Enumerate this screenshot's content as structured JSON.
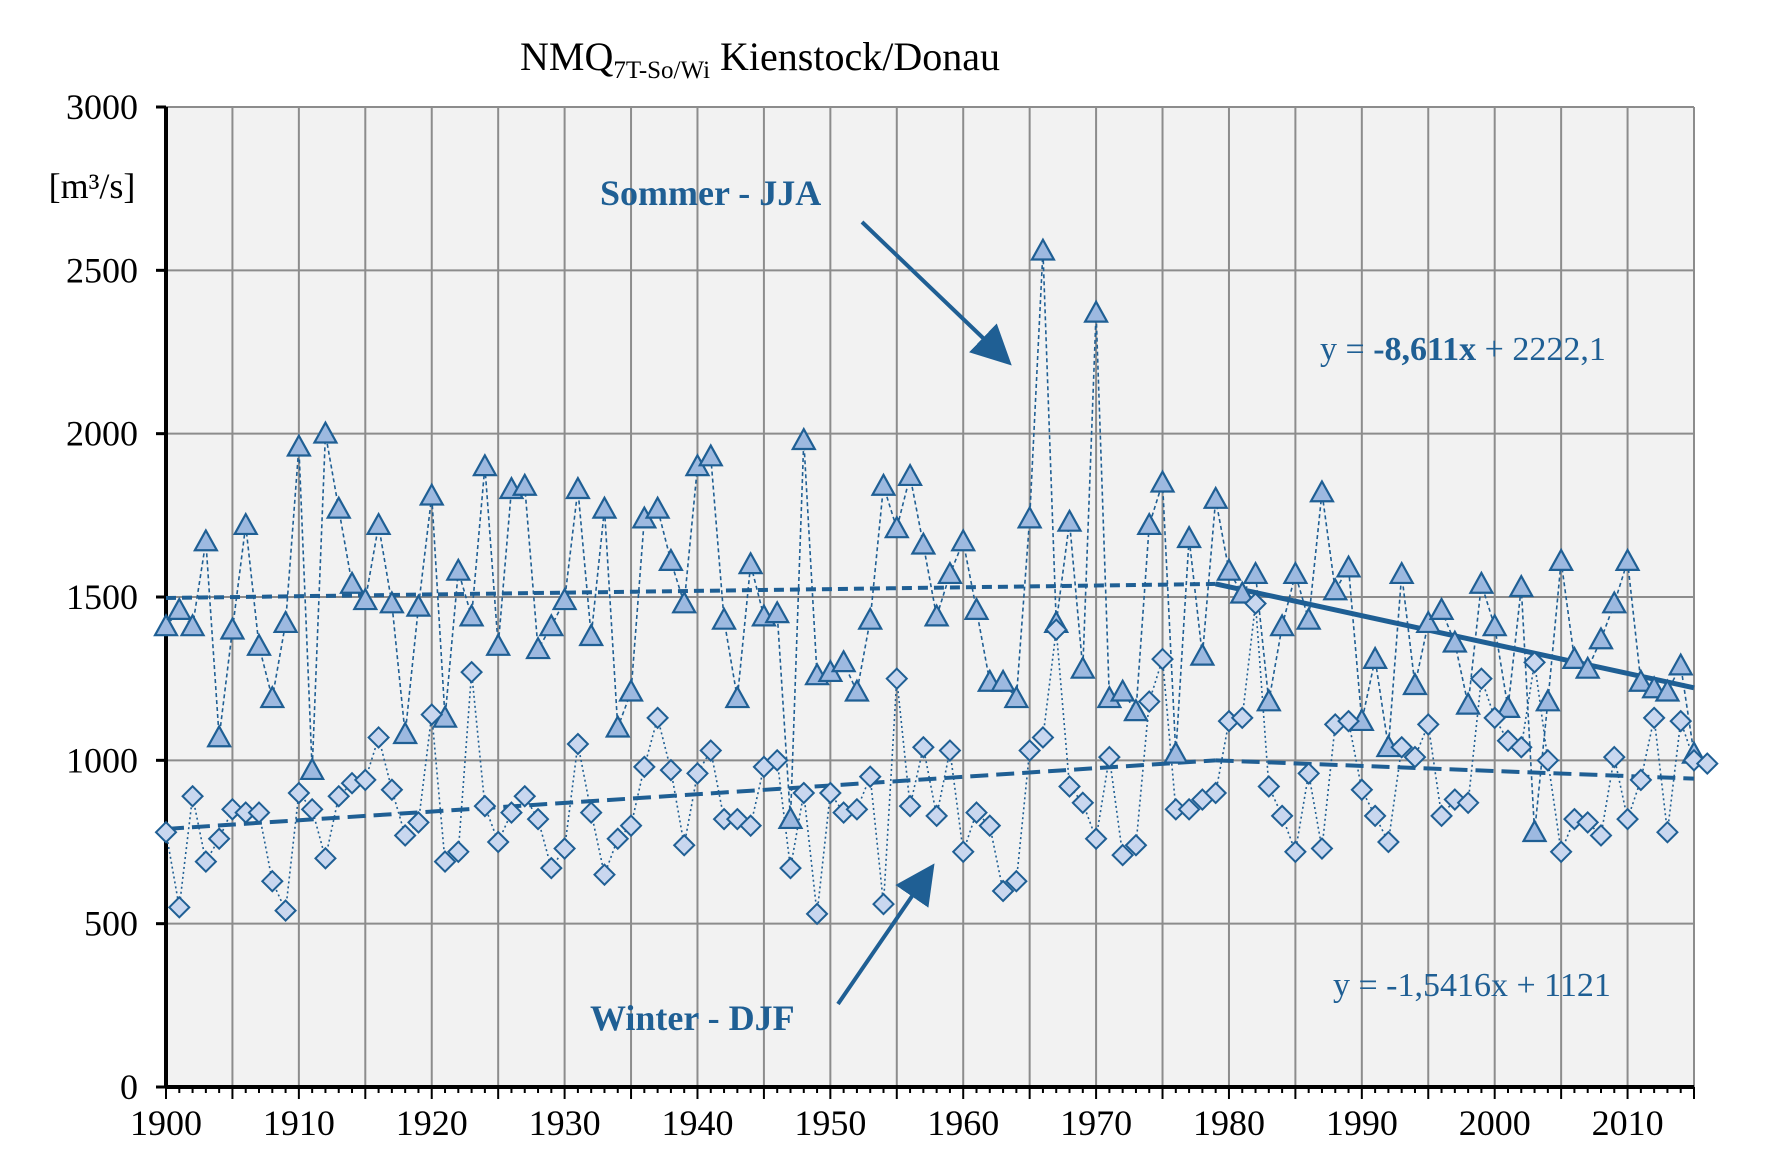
{
  "chart_data": {
    "type": "line",
    "title": {
      "main": "NMQ",
      "sub": "7T-So/Wi",
      "rest": " Kienstock/Donau"
    },
    "ylabel": "[m³/s]",
    "xlabel": "",
    "xlim": [
      1900,
      2015
    ],
    "ylim": [
      0,
      3000
    ],
    "x_ticks": [
      1900,
      1910,
      1920,
      1930,
      1940,
      1950,
      1960,
      1970,
      1980,
      1990,
      2000,
      2010
    ],
    "y_ticks": [
      0,
      500,
      1000,
      1500,
      2000,
      2500,
      3000
    ],
    "grid": true,
    "x_start": 1900,
    "series": [
      {
        "name": "Sommer - JJA",
        "marker": "triangle",
        "values": [
          1410,
          1460,
          1410,
          1670,
          1070,
          1400,
          1720,
          1350,
          1190,
          1420,
          1960,
          970,
          2000,
          1770,
          1540,
          1490,
          1720,
          1480,
          1080,
          1470,
          1810,
          1130,
          1580,
          1440,
          1900,
          1350,
          1830,
          1840,
          1340,
          1410,
          1490,
          1830,
          1380,
          1770,
          1100,
          1210,
          1740,
          1770,
          1610,
          1480,
          1900,
          1930,
          1430,
          1190,
          1600,
          1440,
          1450,
          820,
          1980,
          1260,
          1270,
          1300,
          1210,
          1430,
          1840,
          1710,
          1870,
          1660,
          1440,
          1570,
          1670,
          1460,
          1240,
          1240,
          1190,
          1740,
          2560,
          1420,
          1730,
          1280,
          2370,
          1190,
          1210,
          1150,
          1720,
          1850,
          1020,
          1680,
          1320,
          1800,
          1580,
          1510,
          1570,
          1180,
          1410,
          1570,
          1430,
          1820,
          1520,
          1590,
          1120,
          1310,
          1040,
          1570,
          1230,
          1420,
          1460,
          1360,
          1170,
          1540,
          1410,
          1160,
          1530,
          780,
          1180,
          1610,
          1310,
          1280,
          1370,
          1480,
          1610,
          1240,
          1220,
          1210,
          1290,
          1020
        ]
      },
      {
        "name": "Winter - DJF",
        "marker": "diamond",
        "values": [
          780,
          550,
          890,
          690,
          760,
          850,
          840,
          840,
          630,
          540,
          900,
          850,
          700,
          890,
          930,
          940,
          1070,
          910,
          770,
          810,
          1140,
          690,
          720,
          1270,
          860,
          750,
          840,
          890,
          820,
          670,
          730,
          1050,
          840,
          650,
          760,
          800,
          980,
          1130,
          970,
          740,
          960,
          1030,
          820,
          820,
          800,
          980,
          1000,
          670,
          900,
          530,
          900,
          840,
          850,
          950,
          560,
          1250,
          860,
          1040,
          830,
          1030,
          720,
          840,
          800,
          600,
          630,
          1030,
          1070,
          1400,
          920,
          870,
          760,
          1010,
          710,
          740,
          1180,
          1310,
          850,
          850,
          880,
          900,
          1120,
          1130,
          1480,
          920,
          830,
          720,
          960,
          730,
          1110,
          1120,
          910,
          830,
          750,
          1040,
          1010,
          1110,
          830,
          880,
          870,
          1250,
          1130,
          1060,
          1040,
          1300,
          1000,
          720,
          820,
          810,
          770,
          1010,
          820,
          940,
          1130,
          780,
          1120,
          1000,
          990
        ]
      }
    ],
    "trendlines": [
      {
        "series": "Sommer - JJA",
        "style": "dashed",
        "x": [
          1900,
          1979
        ],
        "y": [
          1497,
          1540
        ]
      },
      {
        "series": "Sommer - JJA",
        "style": "solid",
        "x": [
          1979,
          2015
        ],
        "y": [
          1540,
          1222
        ]
      },
      {
        "series": "Winter - DJF",
        "style": "dashed",
        "x": [
          1900,
          1979
        ],
        "y": [
          790,
          1000
        ]
      },
      {
        "series": "Winter - DJF",
        "style": "dashed",
        "x": [
          1979,
          2015
        ],
        "y": [
          1000,
          944
        ]
      }
    ],
    "annotations": {
      "sommer_label": "Sommer  - JJA",
      "winter_label": "Winter  - DJF",
      "sommer_eq_pre": "y = ",
      "sommer_eq_bold": "-8,611x",
      "sommer_eq_post": " + 2222,1",
      "winter_eq": "y = -1,5416x  + 1121"
    },
    "colors": {
      "series": "#1f5f94",
      "marker_fill": "#9db9e0",
      "marker_fill_winter": "#c9d7ef",
      "plot_bg": "#f2f2f2",
      "grid": "#8c8c8c",
      "arrow": "#1f5f94"
    }
  }
}
